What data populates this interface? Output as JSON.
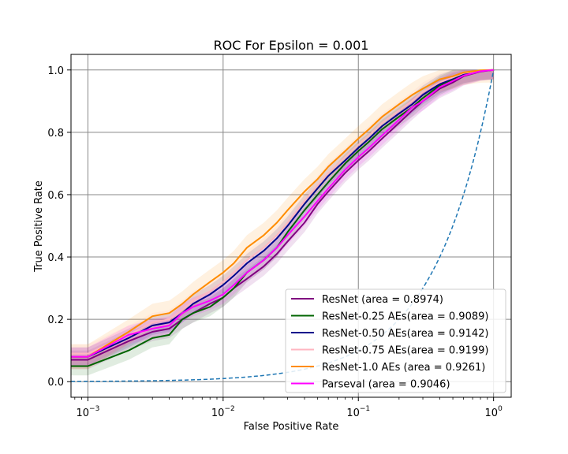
{
  "chart_data": {
    "type": "line",
    "title": "ROC For Epsilon = 0.001",
    "xlabel": "False Positive Rate",
    "ylabel": "True Positive Rate",
    "xscale": "log",
    "xlim": [
      0.00075,
      1.35
    ],
    "ylim": [
      -0.05,
      1.05
    ],
    "grid": true,
    "legend_position": "lower-right",
    "xticks": [
      {
        "value": 0.001,
        "base": "10",
        "exp": "−3"
      },
      {
        "value": 0.01,
        "base": "10",
        "exp": "−2"
      },
      {
        "value": 0.1,
        "base": "10",
        "exp": "−1"
      },
      {
        "value": 1,
        "base": "10",
        "exp": "0"
      }
    ],
    "yticks": [
      {
        "value": 0.0,
        "label": "0.0"
      },
      {
        "value": 0.2,
        "label": "0.2"
      },
      {
        "value": 0.4,
        "label": "0.4"
      },
      {
        "value": 0.6,
        "label": "0.6"
      },
      {
        "value": 0.8,
        "label": "0.8"
      },
      {
        "value": 1.0,
        "label": "1.0"
      }
    ],
    "x": [
      0.00075,
      0.001,
      0.002,
      0.003,
      0.004,
      0.005,
      0.006,
      0.008,
      0.01,
      0.012,
      0.015,
      0.02,
      0.025,
      0.03,
      0.04,
      0.05,
      0.06,
      0.08,
      0.1,
      0.12,
      0.15,
      0.2,
      0.25,
      0.3,
      0.4,
      0.5,
      0.6,
      0.8,
      1.0
    ],
    "series": [
      {
        "name": "ResNet (area = 0.8974)",
        "color": "#800080",
        "band": 0.03,
        "values": [
          0.07,
          0.07,
          0.13,
          0.16,
          0.17,
          0.2,
          0.22,
          0.25,
          0.27,
          0.3,
          0.33,
          0.37,
          0.41,
          0.45,
          0.51,
          0.57,
          0.61,
          0.67,
          0.71,
          0.74,
          0.78,
          0.83,
          0.87,
          0.9,
          0.94,
          0.96,
          0.98,
          0.995,
          1.0
        ]
      },
      {
        "name": "ResNet-0.25 AEs(area = 0.9089)",
        "color": "#006400",
        "band": 0.03,
        "values": [
          0.05,
          0.05,
          0.1,
          0.14,
          0.15,
          0.2,
          0.22,
          0.24,
          0.27,
          0.3,
          0.35,
          0.39,
          0.43,
          0.48,
          0.55,
          0.6,
          0.64,
          0.7,
          0.74,
          0.77,
          0.81,
          0.85,
          0.88,
          0.91,
          0.95,
          0.97,
          0.985,
          0.997,
          1.0
        ]
      },
      {
        "name": "ResNet-0.50 AEs(area = 0.9142)",
        "color": "#00008B",
        "band": 0.03,
        "values": [
          0.08,
          0.08,
          0.14,
          0.18,
          0.19,
          0.22,
          0.25,
          0.28,
          0.31,
          0.34,
          0.38,
          0.42,
          0.46,
          0.5,
          0.57,
          0.62,
          0.66,
          0.71,
          0.75,
          0.78,
          0.82,
          0.86,
          0.89,
          0.92,
          0.955,
          0.973,
          0.988,
          0.998,
          1.0
        ]
      },
      {
        "name": "ResNet-0.75 AEs(area = 0.9199)",
        "color": "#FFB6C1",
        "band": 0.03,
        "values": [
          0.09,
          0.09,
          0.15,
          0.19,
          0.2,
          0.23,
          0.26,
          0.29,
          0.32,
          0.35,
          0.39,
          0.43,
          0.47,
          0.51,
          0.58,
          0.63,
          0.67,
          0.72,
          0.76,
          0.79,
          0.83,
          0.87,
          0.9,
          0.93,
          0.96,
          0.976,
          0.99,
          0.998,
          1.0
        ]
      },
      {
        "name": "ResNet-1.0 AEs (area = 0.9261)",
        "color": "#FF8C00",
        "band": 0.04,
        "values": [
          0.08,
          0.08,
          0.16,
          0.21,
          0.22,
          0.25,
          0.28,
          0.32,
          0.35,
          0.38,
          0.43,
          0.47,
          0.51,
          0.55,
          0.61,
          0.65,
          0.69,
          0.74,
          0.78,
          0.81,
          0.85,
          0.89,
          0.92,
          0.94,
          0.97,
          0.98,
          0.992,
          0.999,
          1.0
        ]
      },
      {
        "name": "Parseval (area = 0.9046)",
        "color": "#FF00FF",
        "band": 0.03,
        "values": [
          0.08,
          0.08,
          0.15,
          0.17,
          0.18,
          0.22,
          0.24,
          0.26,
          0.28,
          0.31,
          0.35,
          0.39,
          0.43,
          0.47,
          0.53,
          0.58,
          0.62,
          0.68,
          0.72,
          0.75,
          0.79,
          0.84,
          0.88,
          0.9,
          0.945,
          0.965,
          0.982,
          0.996,
          1.0
        ]
      }
    ],
    "reference_line": {
      "type": "diagonal",
      "style": "dashed",
      "color": "#1f77b4"
    }
  }
}
